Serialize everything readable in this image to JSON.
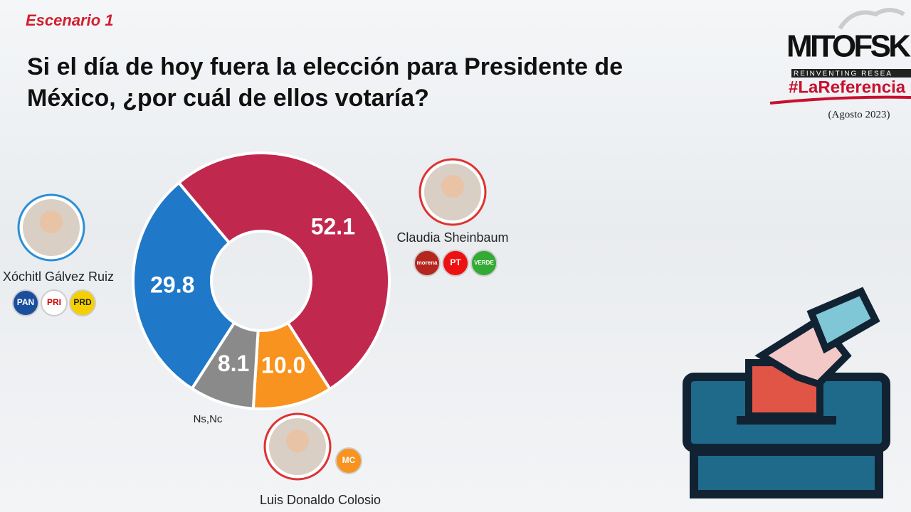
{
  "chart_data": {
    "type": "donut",
    "subtitle": "Escenario 1",
    "title": "Si el día de hoy fuera la elección para Presidente de México, ¿por cuál de ellos votaría?",
    "categories": [
      "Claudia Sheinbaum",
      "Luis Donaldo Colosio",
      "Ns,Nc",
      "Xóchitl Gálvez Ruiz"
    ],
    "values": [
      52.1,
      10.0,
      8.1,
      29.8
    ],
    "value_labels": [
      "52.1",
      "10.0",
      "8.1",
      "29.8"
    ],
    "colors": [
      "#c0284e",
      "#f7931e",
      "#8a8a8a",
      "#1f78c8"
    ],
    "parties": [
      [
        "morena",
        "PT",
        "VERDE"
      ],
      [
        "MC"
      ],
      [],
      [
        "PAN",
        "PRI",
        "PRD"
      ]
    ]
  },
  "logo": {
    "brand": "MITOFSK",
    "tagline": "REINVENTING RESEA",
    "hashtag": "#LaReferencia",
    "date": "(Agosto 2023)"
  }
}
